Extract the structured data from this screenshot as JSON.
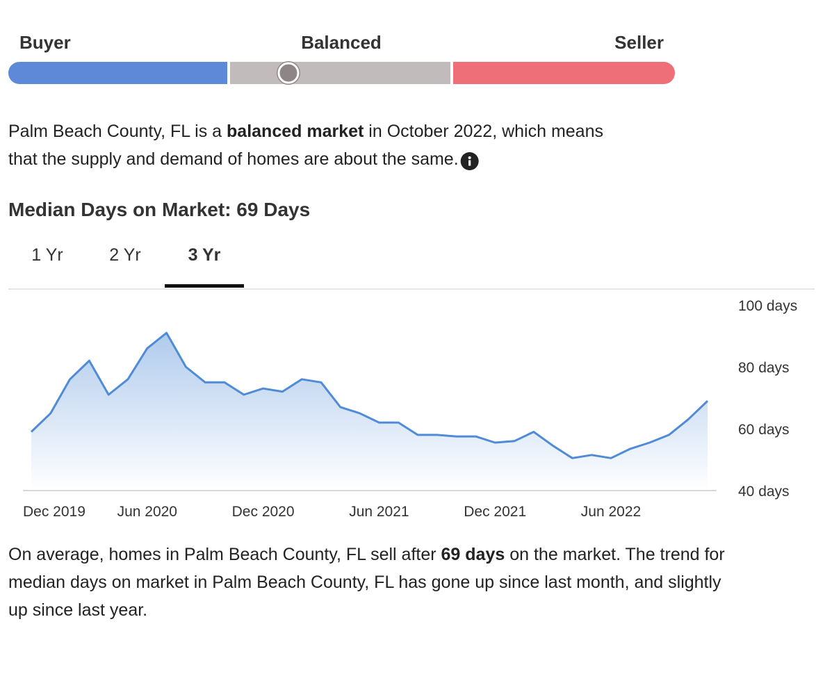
{
  "market_scale": {
    "labels": [
      "Buyer",
      "Balanced",
      "Seller"
    ],
    "colors": [
      "#5e88d8",
      "#c1bbbb",
      "#ef6f78"
    ]
  },
  "description": {
    "lines": [
      [
        {
          "text": "Palm Beach County, FL is a "
        },
        {
          "text": "balanced market",
          "bold": true
        },
        {
          "text": " in October 2022, which means"
        }
      ],
      [
        {
          "text": "that the supply and demand of homes are about the same."
        }
      ]
    ]
  },
  "heading": "Median Days on Market: 69 Days",
  "tabs": [
    {
      "label": "1 Yr"
    },
    {
      "label": "2 Yr"
    },
    {
      "label": "3 Yr",
      "active": true
    }
  ],
  "chart_data": {
    "type": "area",
    "color": "#4f8bd6",
    "categories": [
      "Dec 2019",
      null,
      null,
      null,
      null,
      null,
      "Jun 2020",
      null,
      null,
      null,
      null,
      null,
      "Dec 2020",
      null,
      null,
      null,
      null,
      null,
      "Jun 2021",
      null,
      null,
      null,
      null,
      null,
      "Dec 2021",
      null,
      null,
      null,
      null,
      null,
      "Jun 2022",
      null,
      null,
      null,
      null,
      null
    ],
    "values": [
      59,
      65,
      76,
      82,
      71,
      76,
      86,
      91,
      80,
      75,
      75,
      71,
      73,
      72,
      76,
      75,
      67,
      65,
      62,
      62,
      58,
      58,
      57.5,
      57.5,
      55.5,
      56,
      59,
      54.5,
      50.5,
      51.5,
      50.5,
      53.5,
      55.5,
      58,
      63,
      69
    ],
    "ylim": [
      40,
      100
    ],
    "yticks": [
      {
        "value": 40,
        "label": "40 days"
      },
      {
        "value": 60,
        "label": "60 days"
      },
      {
        "value": 80,
        "label": "80 days"
      },
      {
        "value": 100,
        "label": "100 days"
      }
    ],
    "grid": false
  },
  "summary": {
    "lines": [
      [
        {
          "text": "On average, homes in Palm Beach County, FL sell after "
        },
        {
          "text": "69 days",
          "bold": true
        },
        {
          "text": " on the market. The trend for"
        }
      ],
      [
        {
          "text": "median days on market in Palm Beach County, FL has gone up since last month, and slightly"
        }
      ],
      [
        {
          "text": "up since last year."
        }
      ]
    ]
  }
}
